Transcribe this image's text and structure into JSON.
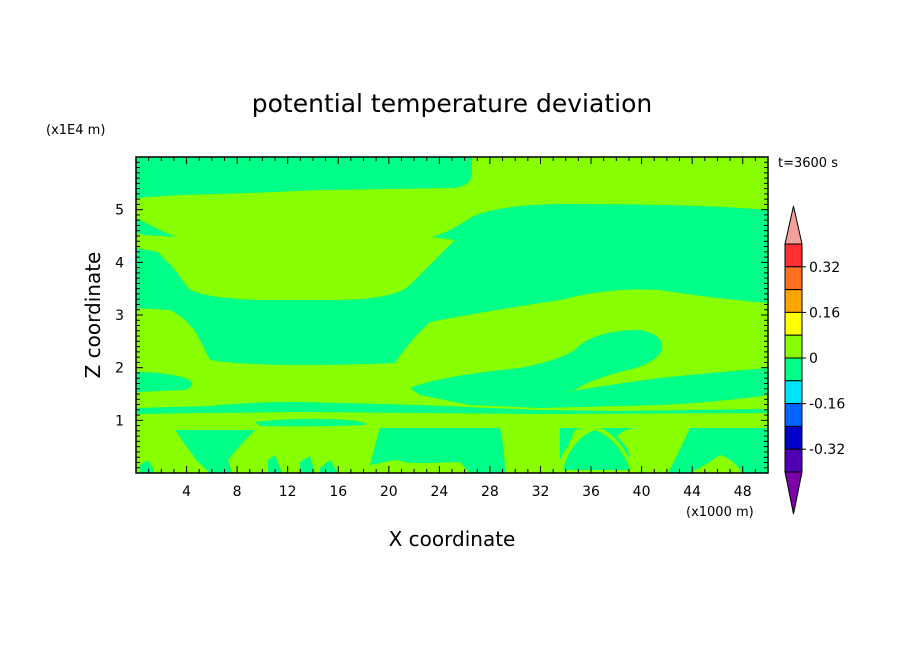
{
  "chart_data": {
    "type": "contour",
    "title": "potential temperature deviation",
    "xlabel": "X coordinate",
    "ylabel": "Z coordinate",
    "x_unit": "(x1000 m)",
    "y_unit": "(x1E4 m)",
    "time_label": "t=3600 s",
    "xlim": [
      0,
      50
    ],
    "ylim": [
      0,
      6
    ],
    "x_ticks": [
      4,
      8,
      12,
      16,
      20,
      24,
      28,
      32,
      36,
      40,
      44,
      48
    ],
    "y_ticks": [
      1,
      2,
      3,
      4,
      5
    ],
    "colorbar": {
      "levels": [
        -0.4,
        -0.32,
        -0.24,
        -0.16,
        -0.08,
        0,
        0.08,
        0.16,
        0.24,
        0.32,
        0.4
      ],
      "labels": [
        "0.32",
        "0.16",
        "0",
        "-0.16",
        "-0.32"
      ],
      "colors_top_to_bottom": [
        "#f2a09a",
        "#ff3030",
        "#ff7020",
        "#ffa500",
        "#ffff00",
        "#88ff00",
        "#00ff88",
        "#00e5ff",
        "#0066ff",
        "#0000c8",
        "#5000b0",
        "#7c00a8"
      ]
    },
    "fields": {
      "negative_band_color": "#00ff88",
      "near_zero_color": "#88ff00"
    }
  }
}
